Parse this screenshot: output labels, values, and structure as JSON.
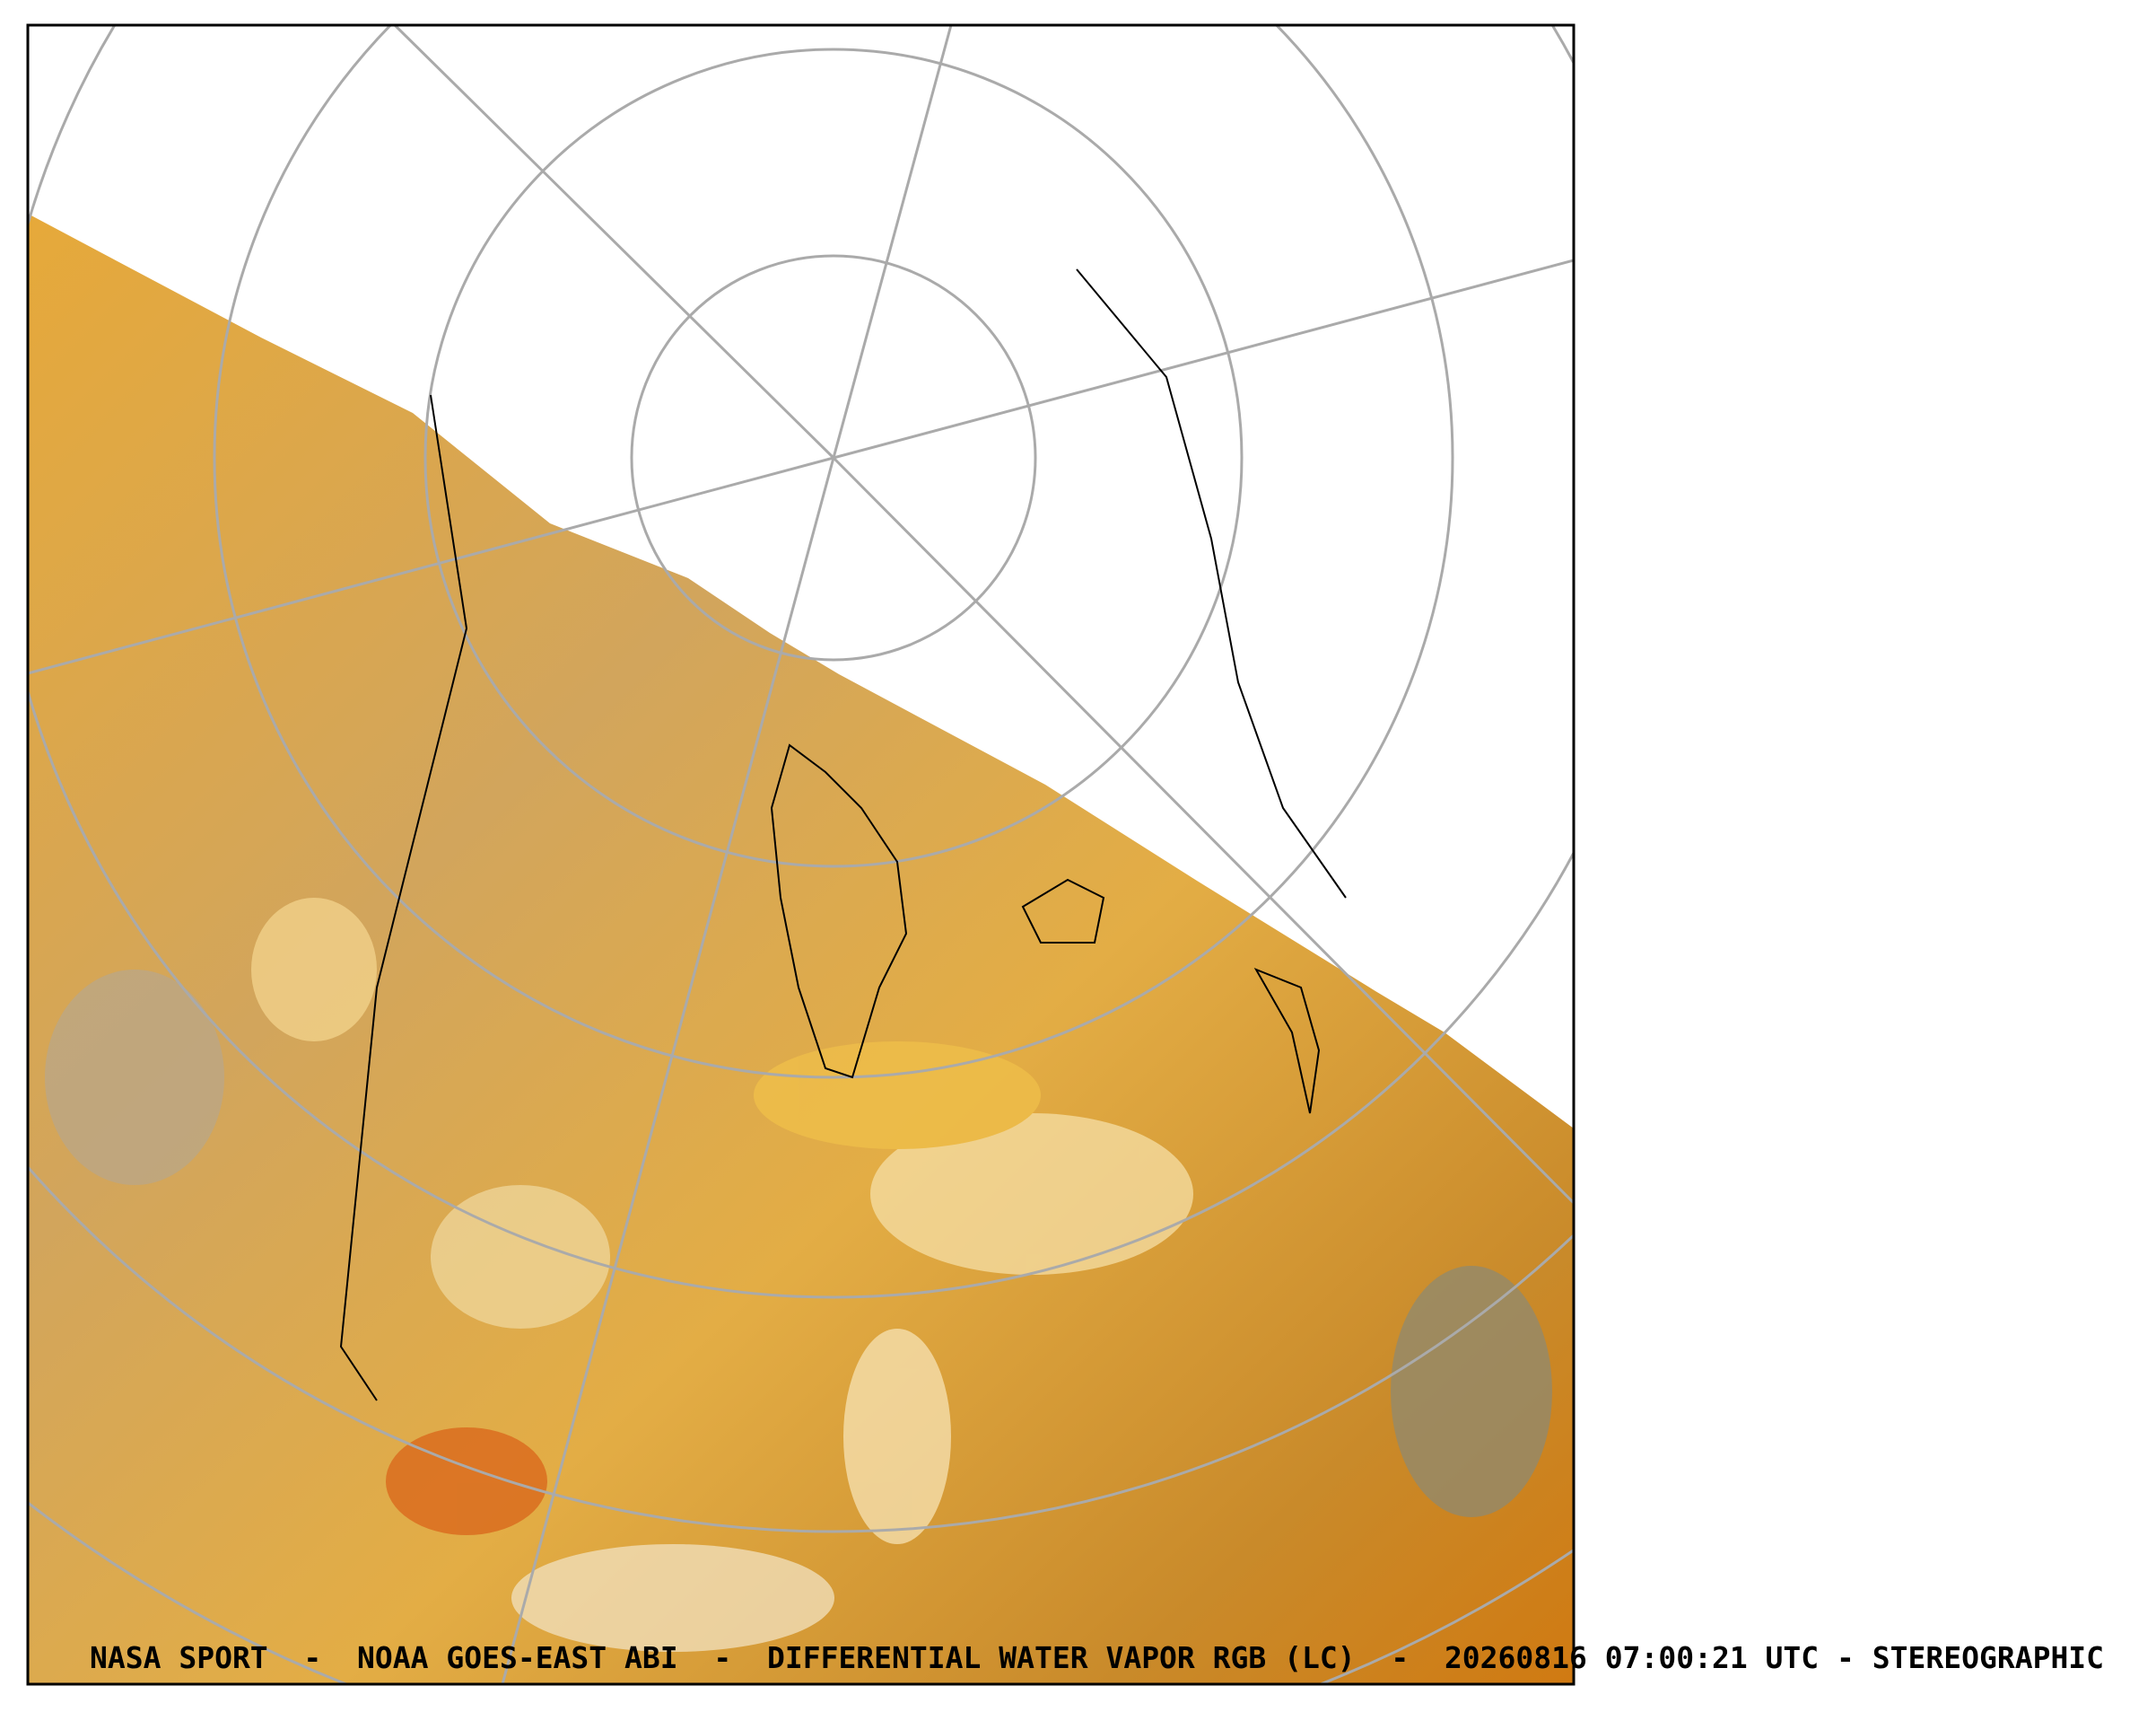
{
  "caption": "NASA SPORT  -  NOAA GOES-EAST ABI  -  DIFFERENTIAL WATER VAPOR RGB (LC)  -  20260816 07:00:21 UTC - STEREOGRAPHIC"
}
